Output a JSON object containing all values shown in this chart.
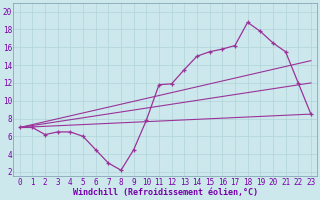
{
  "xlabel": "Windchill (Refroidissement éolien,°C)",
  "xlim": [
    -0.5,
    23.5
  ],
  "ylim": [
    1.5,
    21
  ],
  "xticks": [
    0,
    1,
    2,
    3,
    4,
    5,
    6,
    7,
    8,
    9,
    10,
    11,
    12,
    13,
    14,
    15,
    16,
    17,
    18,
    19,
    20,
    21,
    22,
    23
  ],
  "yticks": [
    2,
    4,
    6,
    8,
    10,
    12,
    14,
    16,
    18,
    20
  ],
  "bg_color": "#cde8ec",
  "line_color": "#993399",
  "grid_color": "#b0d4d8",
  "line1_x": [
    0,
    1,
    2,
    3,
    4,
    5,
    6,
    7,
    8,
    9,
    10,
    11,
    12,
    13,
    14,
    15,
    16,
    17,
    18,
    19,
    20,
    21,
    22,
    23
  ],
  "line1_y": [
    7,
    7,
    6.2,
    6.5,
    6.5,
    6,
    4.5,
    3,
    2.2,
    4.5,
    7.8,
    11.8,
    11.9,
    13.5,
    15,
    15.5,
    15.8,
    16.2,
    18.8,
    17.8,
    16.5,
    15.5,
    12,
    8.5
  ],
  "line2_x": [
    0,
    23
  ],
  "line2_y": [
    7.0,
    8.5
  ],
  "line3_x": [
    0,
    23
  ],
  "line3_y": [
    7.0,
    12.0
  ],
  "line4_x": [
    0,
    23
  ],
  "line4_y": [
    7.0,
    14.5
  ],
  "tick_color": "#7700aa",
  "label_color": "#7700aa",
  "tick_fontsize": 5.5,
  "xlabel_fontsize": 6.0
}
